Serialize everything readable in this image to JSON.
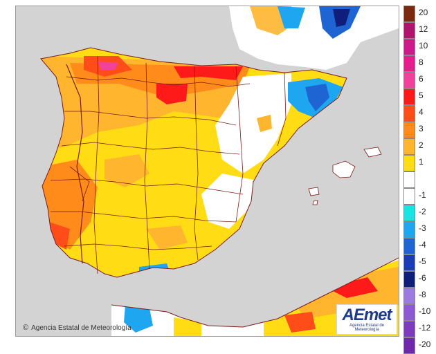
{
  "map": {
    "copyright": "Agencia Estatal de Meteorología",
    "logo": {
      "mark": "AEmet",
      "subtitle": "Agencia Estatal de Meteorología"
    },
    "colors": {
      "sea": "#d3d3d3",
      "border": "#7a1a1a",
      "zero": "#ffffff"
    },
    "legend": {
      "bins": [
        {
          "label": "20",
          "color": "#7b2a10"
        },
        {
          "label": "12",
          "color": "#b0156e"
        },
        {
          "label": "10",
          "color": "#cc1a8a"
        },
        {
          "label": "8",
          "color": "#e61e8c"
        },
        {
          "label": "6",
          "color": "#f0429a"
        },
        {
          "label": "5",
          "color": "#ff1a1a"
        },
        {
          "label": "4",
          "color": "#ff4d1a"
        },
        {
          "label": "3",
          "color": "#ff8c1a"
        },
        {
          "label": "2",
          "color": "#ffb52e"
        },
        {
          "label": "1",
          "color": "#ffdc14"
        },
        {
          "label": "",
          "color": "#ffffff"
        },
        {
          "label": "-1",
          "color": "#ffffff"
        },
        {
          "label": "-2",
          "color": "#19e3e3"
        },
        {
          "label": "-3",
          "color": "#1fa6f0"
        },
        {
          "label": "-4",
          "color": "#1e64d2"
        },
        {
          "label": "-5",
          "color": "#1a3cb4"
        },
        {
          "label": "-6",
          "color": "#0f1e78"
        },
        {
          "label": "-8",
          "color": "#9b7be0"
        },
        {
          "label": "-10",
          "color": "#8c5ad2"
        },
        {
          "label": "-12",
          "color": "#7d3cbe"
        },
        {
          "label": "-20",
          "color": "#6e28aa"
        }
      ]
    }
  }
}
